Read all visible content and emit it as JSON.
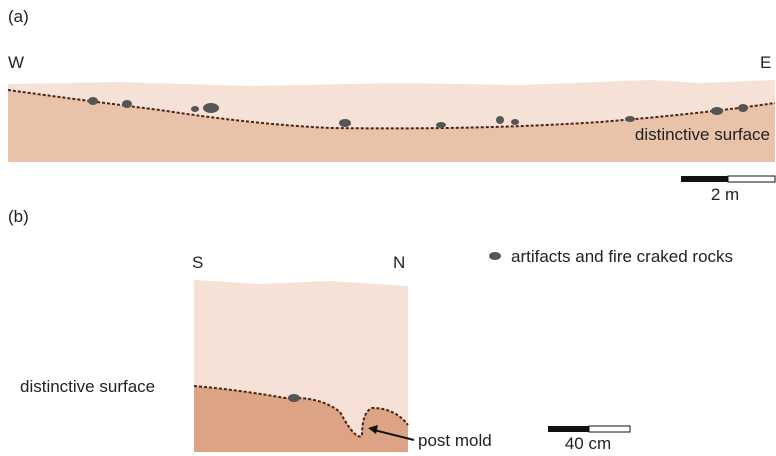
{
  "panel_a": {
    "label": "(a)",
    "west": "W",
    "east": "E",
    "surface_label": "distinctive surface",
    "scale_label": "2 m"
  },
  "panel_b": {
    "label": "(b)",
    "south": "S",
    "north": "N",
    "surface_label": "distinctive surface",
    "post_mold_label": "post mold",
    "scale_label": "40 cm"
  },
  "legend": {
    "label": "artifacts and fire craked rocks"
  }
}
